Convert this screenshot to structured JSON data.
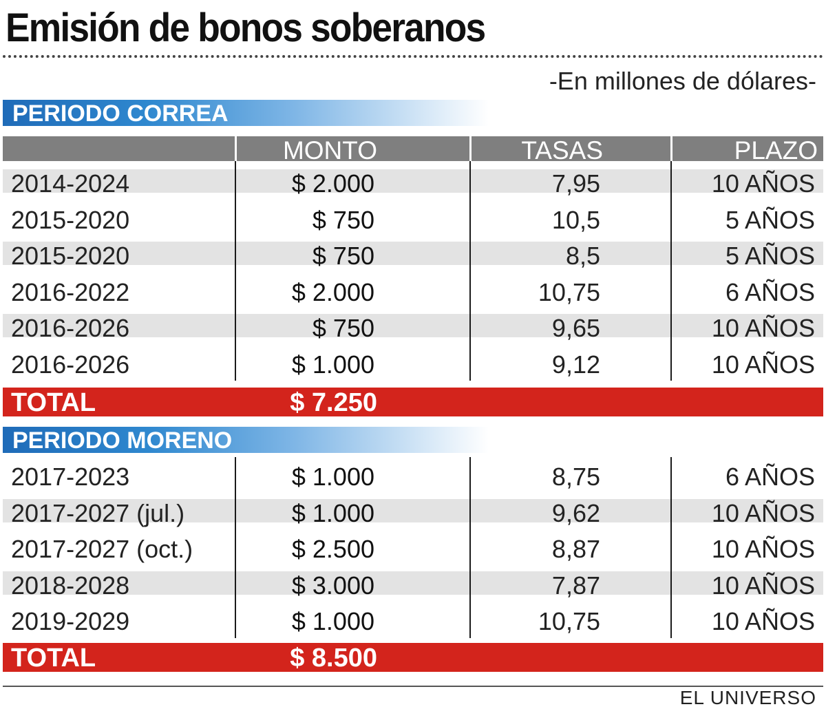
{
  "title": "Emisión de bonos soberanos",
  "subtitle": "-En millones de dólares-",
  "headers": {
    "monto": "MONTO",
    "tasas": "TASAS",
    "plazo": "PLAZO"
  },
  "source": "EL UNIVERSO",
  "colors": {
    "section_blue": "#1f6bb8",
    "total_red": "#d3241c",
    "header_gray": "#7f7f7f",
    "row_shade": "#e3e3e3"
  },
  "chart_data": {
    "type": "table",
    "title": "Emisión de bonos soberanos",
    "unit": "-En millones de dólares-",
    "columns": [
      "",
      "MONTO",
      "TASAS",
      "PLAZO"
    ],
    "sections": [
      {
        "name": "PERIODO CORREA",
        "rows": [
          {
            "period": "2014-2024",
            "monto": "$ 2.000",
            "tasa": "7,95",
            "plazo": "10 AÑOS"
          },
          {
            "period": "2015-2020",
            "monto": "$ 750",
            "tasa": "10,5",
            "plazo": "5 AÑOS"
          },
          {
            "period": "2015-2020",
            "monto": "$ 750",
            "tasa": "8,5",
            "plazo": "5 AÑOS"
          },
          {
            "period": "2016-2022",
            "monto": "$ 2.000",
            "tasa": "10,75",
            "plazo": "6 AÑOS"
          },
          {
            "period": "2016-2026",
            "monto": "$ 750",
            "tasa": "9,65",
            "plazo": "10 AÑOS"
          },
          {
            "period": "2016-2026",
            "monto": "$ 1.000",
            "tasa": "9,12",
            "plazo": "10 AÑOS"
          }
        ],
        "total_label": "TOTAL",
        "total": "$ 7.250"
      },
      {
        "name": "PERIODO MORENO",
        "rows": [
          {
            "period": "2017-2023",
            "monto": "$ 1.000",
            "tasa": "8,75",
            "plazo": "6 AÑOS"
          },
          {
            "period": "2017-2027 (jul.)",
            "monto": "$ 1.000",
            "tasa": "9,62",
            "plazo": "10 AÑOS"
          },
          {
            "period": "2017-2027 (oct.)",
            "monto": "$ 2.500",
            "tasa": "8,87",
            "plazo": "10 AÑOS"
          },
          {
            "period": "2018-2028",
            "monto": "$ 3.000",
            "tasa": "7,87",
            "plazo": "10 AÑOS"
          },
          {
            "period": "2019-2029",
            "monto": "$ 1.000",
            "tasa": "10,75",
            "plazo": "10 AÑOS"
          }
        ],
        "total_label": "TOTAL",
        "total": "$ 8.500"
      }
    ]
  }
}
